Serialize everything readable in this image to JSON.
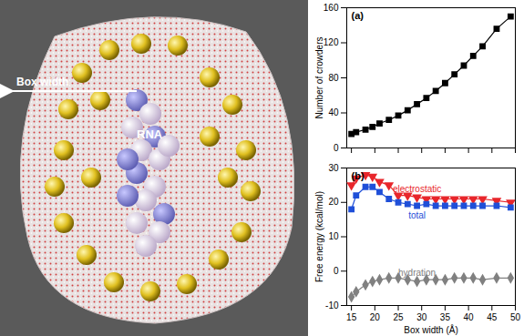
{
  "illustration": {
    "arrow_label": "Box width",
    "molecule_label": "RNA"
  },
  "chart_data": [
    {
      "type": "line",
      "annotation": "(a)",
      "y_label": "Number of crowders",
      "x": [
        15,
        16,
        18,
        19.5,
        21,
        23,
        25,
        27,
        29,
        31,
        33,
        35,
        37,
        39,
        41,
        43,
        46,
        49
      ],
      "values": [
        16,
        18,
        21,
        24,
        28,
        32,
        37,
        43,
        50,
        57,
        65,
        74,
        84,
        94,
        105,
        116,
        136,
        150
      ],
      "color": "#000000",
      "marker": "square",
      "xlim": [
        14,
        50
      ],
      "xticks": [
        15,
        20,
        25,
        30,
        35,
        40,
        45,
        50
      ],
      "ylim": [
        0,
        160
      ],
      "yticks": [
        0,
        40,
        80,
        120,
        160
      ],
      "tick_labels": "y",
      "grid": false
    },
    {
      "type": "line",
      "annotation": "(b)",
      "x_label": "Box width (Å)",
      "y_label": "Free energy (kcal/mol)",
      "x": [
        15,
        16,
        18,
        19.5,
        21,
        23,
        25,
        27,
        29,
        31,
        33,
        35,
        37,
        39,
        41,
        43,
        46,
        49
      ],
      "series": [
        {
          "name": "electrostatic",
          "color": "#e8262b",
          "marker": "triangle-down",
          "values": [
            25,
            27,
            28,
            27.5,
            26,
            25,
            22,
            22,
            21.5,
            21,
            21,
            21,
            21,
            21,
            21,
            21,
            20.5,
            20
          ]
        },
        {
          "name": "total",
          "color": "#1f4fd8",
          "marker": "square",
          "values": [
            18,
            22,
            24.5,
            24.5,
            23,
            21,
            20,
            19.5,
            19,
            19.5,
            19,
            19,
            19,
            19,
            19,
            19,
            19,
            18.5
          ]
        },
        {
          "name": "hydration",
          "color": "#808080",
          "marker": "diamond",
          "values": [
            -7.5,
            -6,
            -4,
            -3,
            -2.5,
            -2,
            -2,
            -2.5,
            -3,
            -2.5,
            -2.5,
            -2.5,
            -2,
            -2,
            -2,
            -2.5,
            -2,
            -2
          ]
        }
      ],
      "xlim": [
        14,
        50
      ],
      "xticks": [
        15,
        20,
        25,
        30,
        35,
        40,
        45,
        50
      ],
      "ylim": [
        -10,
        30
      ],
      "yticks": [
        -10,
        0,
        10,
        20,
        30
      ],
      "grid": false
    }
  ]
}
